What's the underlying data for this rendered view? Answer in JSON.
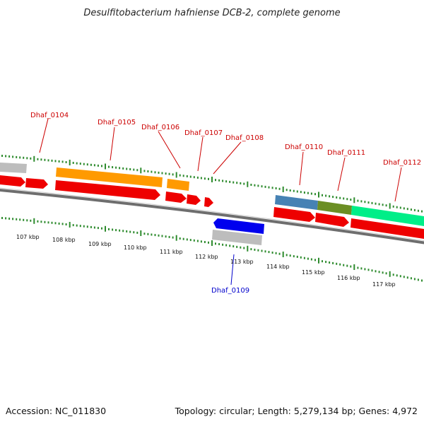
{
  "title": "Desulfitobacterium hafniense DCB-2, complete genome",
  "footer": {
    "accession": "Accession: NC_011830",
    "summary": "Topology: circular; Length: 5,279,134 bp; Genes: 4,972"
  },
  "colors": {
    "label_forward": "#cc0000",
    "label_reverse": "#0000cc",
    "tick": "#2e8b2e",
    "backbone": "#6e6e6e",
    "cds": "#ee0000"
  },
  "kbp_labels": [
    "107 kbp",
    "108 kbp",
    "109 kbp",
    "110 kbp",
    "111 kbp",
    "112 kbp",
    "113 kbp",
    "114 kbp",
    "115 kbp",
    "116 kbp",
    "117 kbp"
  ],
  "gene_labels": [
    {
      "text": "Dhaf_0104",
      "strand": "forward"
    },
    {
      "text": "Dhaf_0105",
      "strand": "forward"
    },
    {
      "text": "Dhaf_0106",
      "strand": "forward"
    },
    {
      "text": "Dhaf_0107",
      "strand": "forward"
    },
    {
      "text": "Dhaf_0108",
      "strand": "forward"
    },
    {
      "text": "Dhaf_0109",
      "strand": "reverse"
    },
    {
      "text": "Dhaf_0110",
      "strand": "forward"
    },
    {
      "text": "Dhaf_0111",
      "strand": "forward"
    },
    {
      "text": "Dhaf_0112",
      "strand": "forward"
    }
  ],
  "feature_colors": {
    "grey": "#bdbdbd",
    "orange": "#ff9a00",
    "blue_cds": "#0000ee",
    "steelblue": "#4682b4",
    "olive": "#6b8e23",
    "aqua": "#00ee88"
  }
}
